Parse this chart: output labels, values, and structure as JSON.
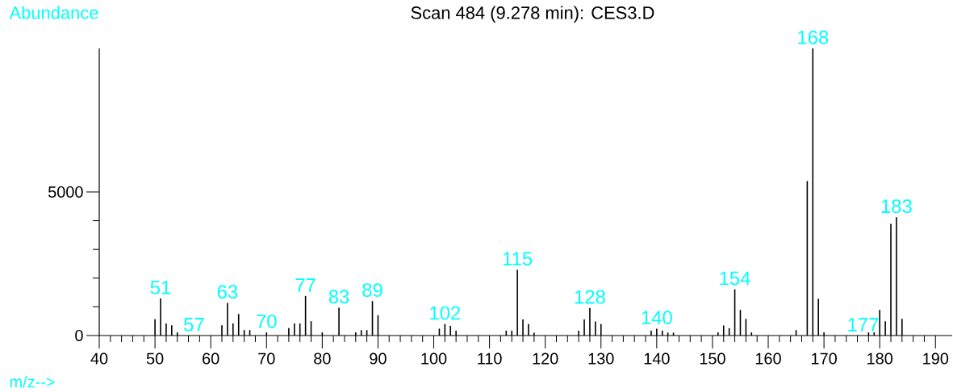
{
  "chart_data": {
    "type": "bar",
    "title": "Scan 484 (9.278 min): CES3.D",
    "xlabel": "m/z-->",
    "ylabel": "Abundance",
    "x": [
      50,
      51,
      52,
      53,
      54,
      62,
      63,
      64,
      65,
      66,
      67,
      70,
      74,
      75,
      76,
      77,
      78,
      80,
      83,
      86,
      87,
      88,
      89,
      90,
      101,
      102,
      103,
      104,
      113,
      114,
      115,
      116,
      117,
      118,
      126,
      127,
      128,
      129,
      130,
      139,
      140,
      141,
      142,
      143,
      151,
      152,
      153,
      154,
      155,
      156,
      157,
      165,
      167,
      168,
      169,
      170,
      178,
      179,
      180,
      181,
      182,
      183,
      184
    ],
    "values": [
      570,
      1290,
      420,
      360,
      110,
      360,
      1140,
      420,
      750,
      190,
      190,
      110,
      260,
      420,
      420,
      1380,
      500,
      110,
      970,
      110,
      190,
      190,
      1200,
      710,
      240,
      400,
      340,
      170,
      170,
      170,
      2290,
      560,
      400,
      100,
      170,
      560,
      960,
      490,
      400,
      170,
      240,
      170,
      100,
      100,
      110,
      350,
      260,
      1610,
      890,
      580,
      110,
      190,
      5380,
      10000,
      1280,
      110,
      110,
      110,
      890,
      500,
      3890,
      4120,
      580
    ],
    "color": "#000000",
    "xlim": [
      40,
      193
    ],
    "xticks": [
      40,
      50,
      60,
      70,
      80,
      90,
      100,
      110,
      120,
      130,
      140,
      150,
      160,
      170,
      180,
      190
    ],
    "ylim": [
      0,
      10000
    ],
    "yticks": [
      0,
      5000
    ],
    "annotations": [
      {
        "text": "51",
        "x": 51,
        "y": 1290
      },
      "57",
      {
        "text": "63",
        "x": 63,
        "y": 1140
      },
      {
        "text": "70",
        "x": 70,
        "y": 110
      },
      {
        "text": "77",
        "x": 77,
        "y": 1380
      },
      {
        "text": "83",
        "x": 83,
        "y": 970
      },
      {
        "text": "89",
        "x": 89,
        "y": 1200
      },
      {
        "text": "102",
        "x": 102,
        "y": 400
      },
      {
        "text": "115",
        "x": 115,
        "y": 2290
      },
      {
        "text": "128",
        "x": 128,
        "y": 960
      },
      {
        "text": "140",
        "x": 140,
        "y": 240
      },
      {
        "text": "154",
        "x": 154,
        "y": 1610
      },
      {
        "text": "168",
        "x": 168,
        "y": 10000
      },
      "177",
      {
        "text": "183",
        "x": 183,
        "y": 4120
      }
    ]
  }
}
